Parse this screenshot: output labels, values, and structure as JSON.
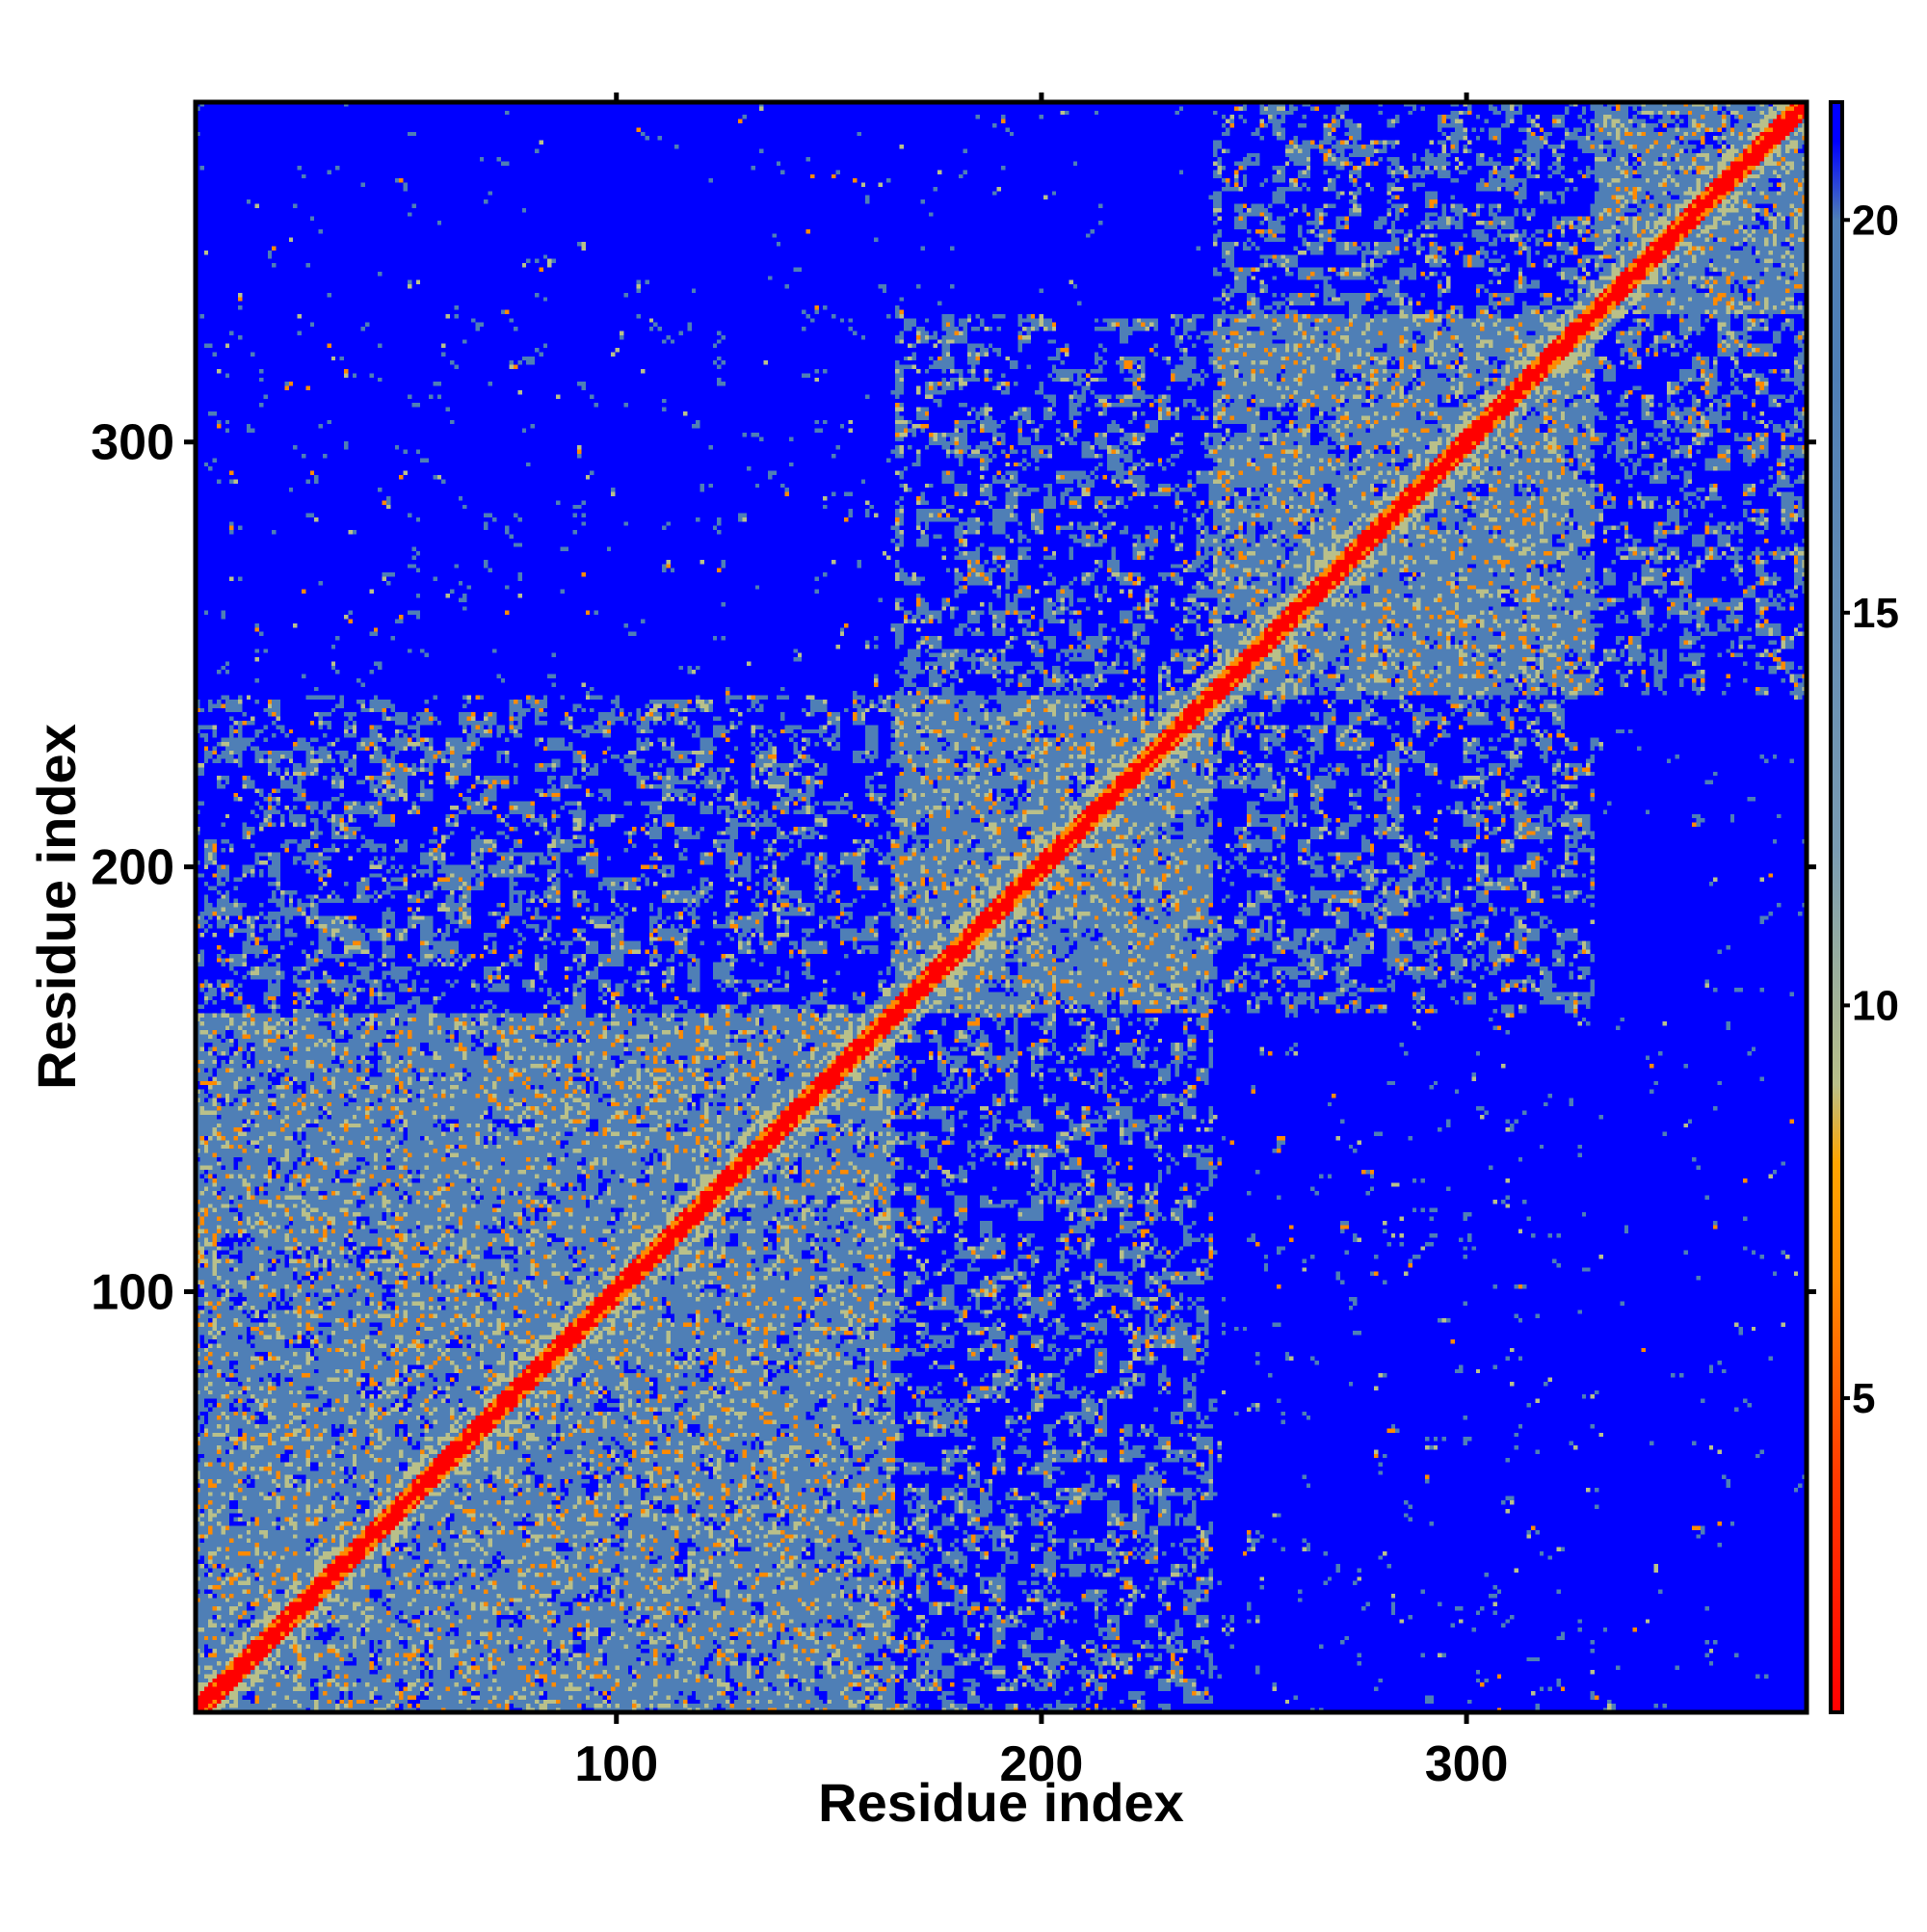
{
  "chart_data": {
    "type": "heatmap",
    "title": "",
    "xlabel": "Residue index",
    "ylabel": "Residue index",
    "xlim": [
      1,
      380
    ],
    "ylim": [
      1,
      380
    ],
    "x_ticks": [
      100,
      200,
      300
    ],
    "y_ticks": [
      100,
      200,
      300
    ],
    "n_residues": 380,
    "colorbar": {
      "range": [
        1,
        21.5
      ],
      "ticks": [
        5,
        10,
        15,
        20
      ],
      "stops": [
        {
          "value": 1.0,
          "color": "#ff0000"
        },
        {
          "value": 4.0,
          "color": "#ff3a00"
        },
        {
          "value": 6.5,
          "color": "#ff8a00"
        },
        {
          "value": 8.0,
          "color": "#ffa500"
        },
        {
          "value": 9.0,
          "color": "#b9c08a"
        },
        {
          "value": 12.0,
          "color": "#7a9cb4"
        },
        {
          "value": 18.0,
          "color": "#4f7fb6"
        },
        {
          "value": 20.0,
          "color": "#4f7fb6"
        },
        {
          "value": 21.0,
          "color": "#0000ff"
        },
        {
          "value": 21.5,
          "color": "#0000ff"
        }
      ]
    },
    "colors": {
      "far": "#0000ff",
      "mid": "#4f7fb6",
      "near": "#ff8a00",
      "contact": "#ff0000"
    },
    "domains": [
      {
        "range": [
          1,
          165
        ]
      },
      {
        "range": [
          165,
          240
        ]
      },
      {
        "range": [
          240,
          330
        ]
      },
      {
        "range": [
          330,
          380
        ]
      }
    ]
  }
}
